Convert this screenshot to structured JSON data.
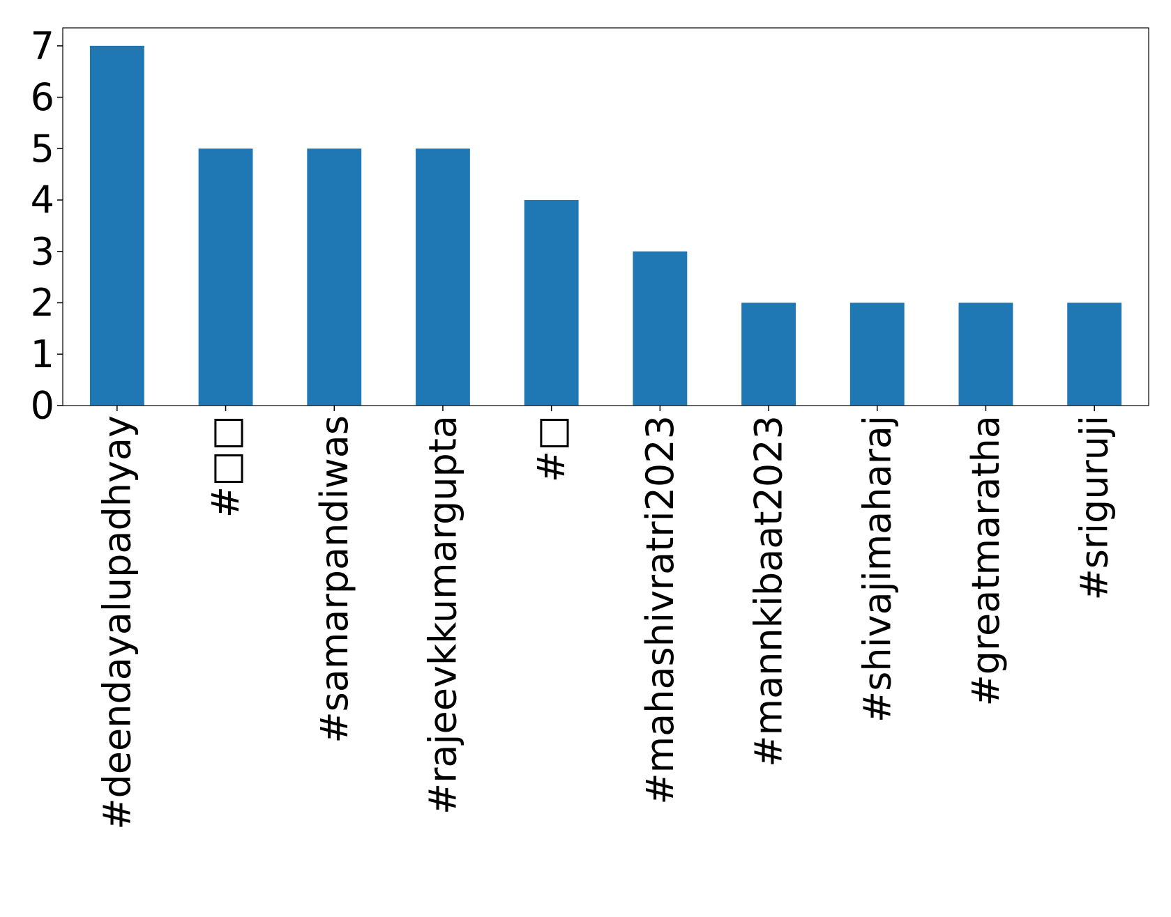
{
  "chart_data": {
    "type": "bar",
    "categories": [
      "#deendayalupadhyay",
      "#□□",
      "#samarpandiwas",
      "#rajeevkkumargupta",
      "#□",
      "#mahashivratri2023",
      "#mannkibaat2023",
      "#shivajimaharaj",
      "#greatmaratha",
      "#sriguruji"
    ],
    "values": [
      7,
      5,
      5,
      5,
      4,
      3,
      2,
      2,
      2,
      2
    ],
    "color": "#1f77b4",
    "ylim": [
      0,
      7.35
    ],
    "yticks": [
      0,
      1,
      2,
      3,
      4,
      5,
      6,
      7
    ],
    "grid": false
  }
}
